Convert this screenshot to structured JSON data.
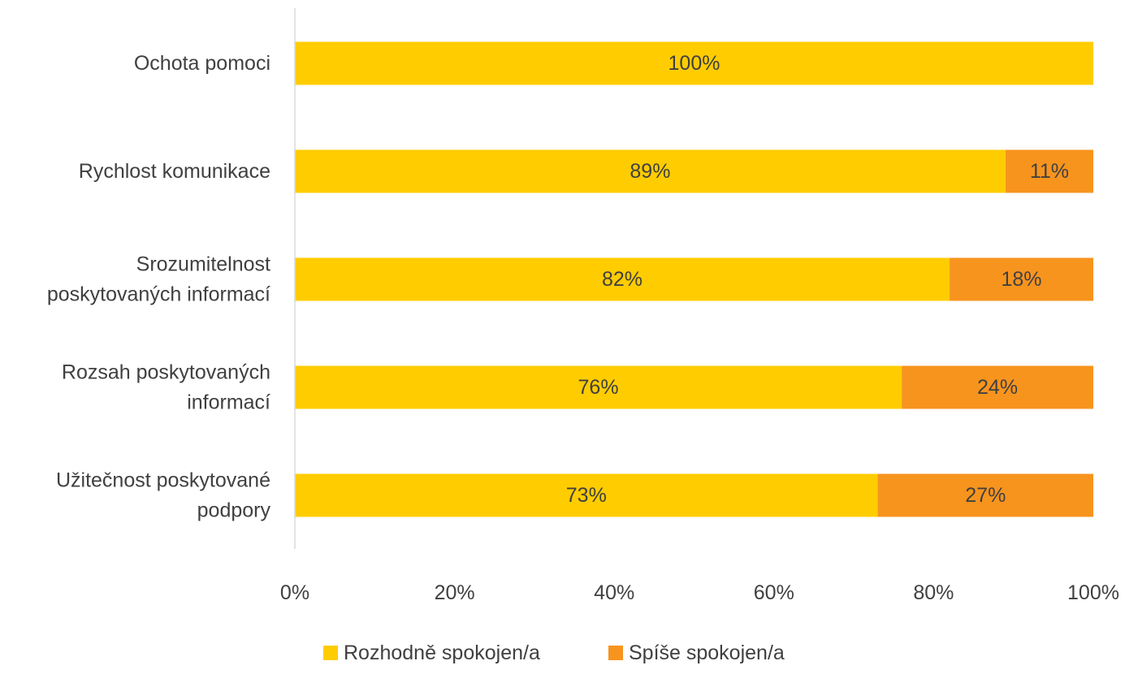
{
  "chart_data": {
    "type": "bar",
    "orientation": "horizontal",
    "stacked": true,
    "categories": [
      [
        "Ochota pomoci"
      ],
      [
        "Rychlost komunikace"
      ],
      [
        "Srozumitelnost",
        "poskytovaných informací"
      ],
      [
        "Rozsah poskytovaných",
        "informací"
      ],
      [
        "Užitečnost poskytované",
        "podpory"
      ]
    ],
    "series": [
      {
        "name": "Rozhodně spokojen/a",
        "color": "#FFCC00",
        "values": [
          100,
          89,
          82,
          76,
          73
        ],
        "labels": [
          "100%",
          "89%",
          "82%",
          "76%",
          "73%"
        ]
      },
      {
        "name": "Spíše spokojen/a",
        "color": "#F7941E",
        "values": [
          0,
          11,
          18,
          24,
          27
        ],
        "labels": [
          "",
          "11%",
          "18%",
          "24%",
          "27%"
        ]
      }
    ],
    "xlim": [
      0,
      100
    ],
    "xticks": [
      "0%",
      "20%",
      "40%",
      "60%",
      "80%",
      "100%"
    ],
    "grid": false,
    "legend_position": "bottom"
  }
}
